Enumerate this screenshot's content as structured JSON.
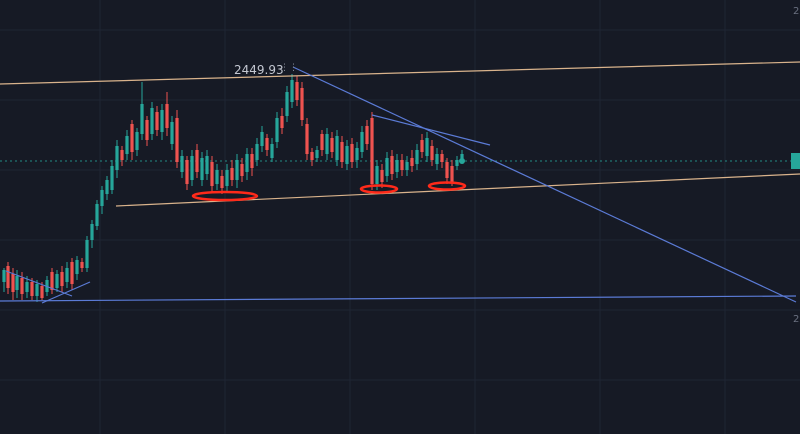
{
  "chart_data": {
    "type": "candlestick",
    "annotation_price": "2449.93",
    "colors": {
      "background": "#161a25",
      "grid": "#1f2533",
      "bull": "#26a69a",
      "bear": "#ef5350",
      "channel": "#d9b38c",
      "trendline": "#5b7bd6",
      "highlight": "#ff2a1a",
      "price_line": "#26a69a"
    },
    "candles": [
      [
        4,
        268,
        292,
        282,
        270
      ],
      [
        8,
        262,
        294,
        266,
        288
      ],
      [
        13,
        268,
        300,
        274,
        292
      ],
      [
        17,
        270,
        298,
        290,
        276
      ],
      [
        22,
        272,
        300,
        278,
        294
      ],
      [
        27,
        276,
        298,
        292,
        282
      ],
      [
        32,
        278,
        300,
        282,
        296
      ],
      [
        37,
        280,
        302,
        296,
        284
      ],
      [
        42,
        282,
        300,
        286,
        298
      ],
      [
        47,
        276,
        296,
        292,
        280
      ],
      [
        52,
        268,
        294,
        272,
        290
      ],
      [
        57,
        270,
        292,
        288,
        274
      ],
      [
        62,
        266,
        292,
        272,
        286
      ],
      [
        67,
        262,
        288,
        282,
        268
      ],
      [
        72,
        258,
        290,
        262,
        284
      ],
      [
        77,
        256,
        280,
        274,
        260
      ],
      [
        82,
        258,
        272,
        262,
        268
      ],
      [
        87,
        236,
        272,
        268,
        240
      ],
      [
        92,
        220,
        248,
        240,
        224
      ],
      [
        97,
        200,
        230,
        226,
        204
      ],
      [
        102,
        186,
        214,
        206,
        190
      ],
      [
        107,
        176,
        200,
        194,
        180
      ],
      [
        112,
        160,
        194,
        190,
        166
      ],
      [
        117,
        140,
        178,
        170,
        146
      ],
      [
        122,
        146,
        166,
        150,
        160
      ],
      [
        127,
        130,
        160,
        154,
        136
      ],
      [
        132,
        120,
        160,
        124,
        152
      ],
      [
        137,
        128,
        156,
        150,
        132
      ],
      [
        142,
        82,
        140,
        134,
        104
      ],
      [
        147,
        116,
        146,
        120,
        140
      ],
      [
        152,
        102,
        140,
        134,
        108
      ],
      [
        157,
        106,
        136,
        112,
        130
      ],
      [
        162,
        104,
        140,
        132,
        110
      ],
      [
        167,
        92,
        136,
        104,
        128
      ],
      [
        172,
        116,
        150,
        144,
        122
      ],
      [
        177,
        110,
        168,
        118,
        162
      ],
      [
        182,
        150,
        178,
        172,
        156
      ],
      [
        187,
        156,
        190,
        160,
        184
      ],
      [
        192,
        150,
        186,
        180,
        156
      ],
      [
        197,
        144,
        178,
        150,
        172
      ],
      [
        202,
        152,
        186,
        180,
        158
      ],
      [
        207,
        150,
        180,
        174,
        156
      ],
      [
        212,
        156,
        192,
        162,
        186
      ],
      [
        217,
        164,
        190,
        184,
        170
      ],
      [
        222,
        170,
        194,
        176,
        188
      ],
      [
        227,
        164,
        192,
        186,
        170
      ],
      [
        232,
        160,
        186,
        168,
        180
      ],
      [
        237,
        154,
        188,
        180,
        160
      ],
      [
        242,
        158,
        182,
        164,
        176
      ],
      [
        247,
        148,
        180,
        172,
        154
      ],
      [
        252,
        148,
        176,
        154,
        168
      ],
      [
        257,
        138,
        166,
        160,
        144
      ],
      [
        262,
        126,
        152,
        146,
        132
      ],
      [
        267,
        134,
        156,
        138,
        150
      ],
      [
        272,
        138,
        162,
        158,
        144
      ],
      [
        277,
        112,
        148,
        142,
        118
      ],
      [
        282,
        108,
        134,
        116,
        128
      ],
      [
        287,
        86,
        122,
        116,
        92
      ],
      [
        292,
        74,
        108,
        102,
        80
      ],
      [
        297,
        76,
        106,
        82,
        100
      ],
      [
        302,
        82,
        126,
        88,
        120
      ],
      [
        307,
        118,
        160,
        124,
        154
      ],
      [
        312,
        148,
        166,
        152,
        160
      ],
      [
        317,
        146,
        162,
        158,
        150
      ],
      [
        322,
        130,
        156,
        134,
        150
      ],
      [
        327,
        128,
        160,
        154,
        134
      ],
      [
        332,
        132,
        158,
        138,
        152
      ],
      [
        337,
        130,
        166,
        160,
        136
      ],
      [
        342,
        136,
        168,
        142,
        162
      ],
      [
        347,
        140,
        170,
        164,
        146
      ],
      [
        352,
        138,
        168,
        144,
        162
      ],
      [
        357,
        142,
        168,
        160,
        148
      ],
      [
        362,
        126,
        158,
        152,
        132
      ],
      [
        367,
        120,
        150,
        126,
        144
      ],
      [
        372,
        112,
        190,
        118,
        184
      ],
      [
        377,
        160,
        190,
        184,
        166
      ],
      [
        382,
        164,
        188,
        170,
        182
      ],
      [
        387,
        152,
        182,
        176,
        158
      ],
      [
        392,
        150,
        180,
        156,
        174
      ],
      [
        397,
        154,
        178,
        172,
        160
      ],
      [
        402,
        154,
        176,
        160,
        170
      ],
      [
        407,
        156,
        176,
        170,
        162
      ],
      [
        412,
        150,
        172,
        158,
        166
      ],
      [
        417,
        144,
        170,
        164,
        150
      ],
      [
        422,
        134,
        158,
        140,
        152
      ],
      [
        427,
        132,
        162,
        156,
        138
      ],
      [
        432,
        140,
        166,
        146,
        160
      ],
      [
        437,
        148,
        170,
        164,
        154
      ],
      [
        442,
        150,
        168,
        154,
        162
      ],
      [
        447,
        158,
        184,
        162,
        178
      ],
      [
        452,
        160,
        186,
        166,
        182
      ],
      [
        457,
        156,
        170,
        166,
        160
      ],
      [
        462,
        150,
        164,
        160,
        154
      ]
    ]
  }
}
